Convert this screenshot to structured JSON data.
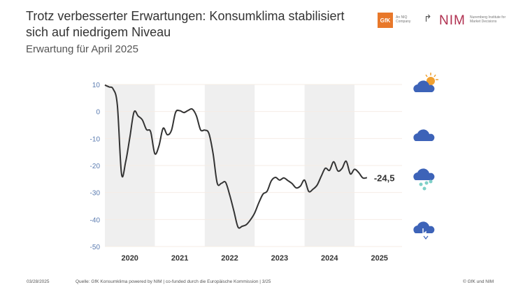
{
  "header": {
    "title": "Trotz verbesserter Erwartungen: Konsumklima stabilisiert sich auf niedrigem Niveau",
    "subtitle": "Erwartung für April 2025"
  },
  "logos": {
    "gfk": "GfK",
    "gfk_sub": "An NIQ Company",
    "nim": "NIM",
    "nim_sub": "Nuremberg Institute for Market Decisions"
  },
  "chart_data": {
    "type": "line",
    "title": "",
    "xlabel": "",
    "ylabel": "",
    "ylim": [
      -50,
      10
    ],
    "yticks": [
      10,
      0,
      -10,
      -20,
      -30,
      -40,
      -50
    ],
    "xtick_labels": [
      "2020",
      "2021",
      "2022",
      "2023",
      "2024",
      "2025"
    ],
    "x_start": "2020-01",
    "x_end": "2025-04",
    "frequency": "monthly",
    "grid": "horizontal",
    "shaded_years": [
      "2020",
      "2022",
      "2024"
    ],
    "line_color": "#333333",
    "last_value_label": "-24,5",
    "values": [
      9.8,
      9.1,
      8.3,
      2.3,
      -23.1,
      -18.6,
      -9.6,
      -0.2,
      -1.7,
      -3.1,
      -6.7,
      -7.5,
      -15.6,
      -12.7,
      -6.2,
      -8.6,
      -7.0,
      -0.3,
      0.3,
      -0.4,
      0.4,
      0.9,
      -1.6,
      -6.8,
      -6.9,
      -8.1,
      -15.5,
      -26.5,
      -26.6,
      -26.2,
      -30.9,
      -36.8,
      -42.8,
      -42.5,
      -41.9,
      -40.1,
      -37.6,
      -33.8,
      -30.6,
      -29.5,
      -25.7,
      -24.4,
      -25.4,
      -24.6,
      -25.6,
      -26.7,
      -28.3,
      -27.6,
      -25.4,
      -29.6,
      -28.8,
      -27.3,
      -24.0,
      -21.0,
      -21.8,
      -18.6,
      -22.0,
      -21.1,
      -18.4,
      -23.1,
      -21.4,
      -22.6,
      -24.6,
      -24.5
    ]
  },
  "weather_icons": [
    "sun-cloud-icon",
    "cloud-icon",
    "rain-cloud-icon",
    "storm-cloud-icon"
  ],
  "colors": {
    "tick": "#5a7bb0",
    "band": "#efefef",
    "cloud": "#3d63b8",
    "sun": "#f0a030",
    "rain": "#7fd0c8"
  },
  "footer": {
    "date": "03/28/2025",
    "source": "Quelle: GfK Konsumklima powered by NIM | co-funded durch die Europäische Kommission | 3/25",
    "copyright": "© GfK und NIM"
  }
}
